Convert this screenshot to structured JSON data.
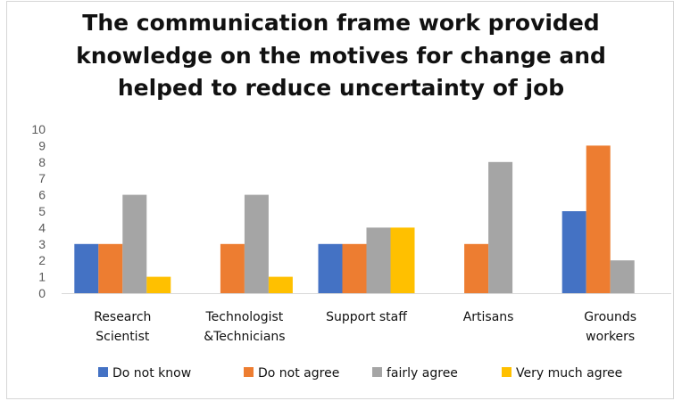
{
  "chart_data": {
    "type": "bar",
    "title": [
      "The communication frame work provided",
      "knowledge on the motives for change and",
      "helped to reduce uncertainty of job"
    ],
    "categories": [
      [
        "Research",
        "Scientist"
      ],
      [
        "Technologist",
        "&Technicians"
      ],
      [
        "Support staff"
      ],
      [
        "Artisans"
      ],
      [
        "Grounds",
        "workers"
      ]
    ],
    "series": [
      {
        "name": "Do not know",
        "color": "#4472C4",
        "values": [
          3,
          0,
          3,
          0,
          5
        ]
      },
      {
        "name": "Do not agree",
        "color": "#ED7D31",
        "values": [
          3,
          3,
          3,
          3,
          9
        ]
      },
      {
        "name": "fairly agree",
        "color": "#A5A5A5",
        "values": [
          6,
          6,
          4,
          8,
          2
        ]
      },
      {
        "name": "Very much agree",
        "color": "#FFC000",
        "values": [
          1,
          1,
          4,
          0,
          0
        ]
      }
    ],
    "ylim": [
      0,
      10
    ],
    "yticks": [
      0,
      1,
      2,
      3,
      4,
      5,
      6,
      7,
      8,
      9,
      10
    ],
    "grid": false,
    "legend_position": "bottom"
  }
}
